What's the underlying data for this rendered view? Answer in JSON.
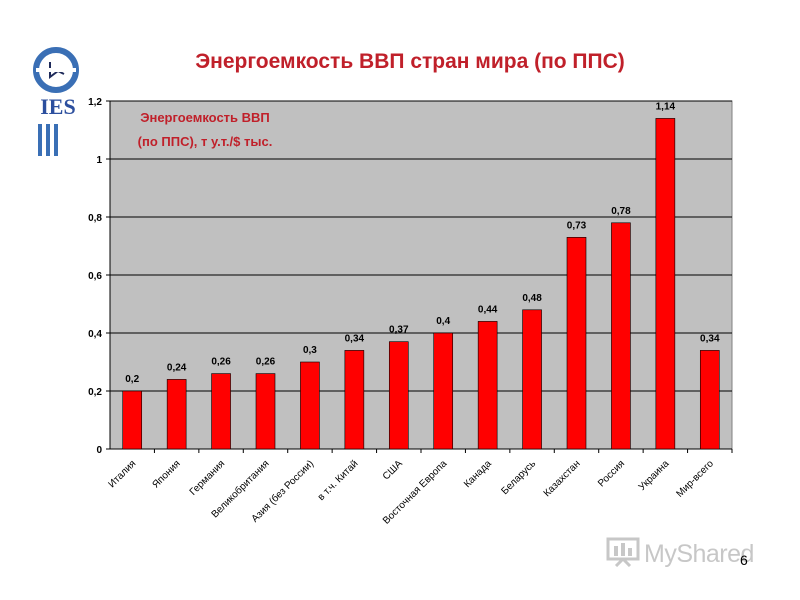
{
  "slide": {
    "title": "Энергоемкость ВВП стран мира (по ППС)",
    "logo_text": "IES",
    "page_number": "6",
    "watermark": "MyShared"
  },
  "colors": {
    "bar": "#ff0000",
    "plot_bg": "#c0c0c0",
    "title": "#c0202a",
    "inner_title": "#c0202a"
  },
  "chart_data": {
    "type": "bar",
    "inner_title_line1": "Энергоемкость ВВП",
    "inner_title_line2": "(по ППС), т у.т./$ тыс.",
    "categories": [
      "Италия",
      "Япония",
      "Германия",
      "Великобритания",
      "Азия (без России)",
      "в т.ч. Китай",
      "США",
      "Восточная Европа",
      "Канада",
      "Беларусь",
      "Казахстан",
      "Россия",
      "Украина",
      "Мир-всего"
    ],
    "values": [
      0.2,
      0.24,
      0.26,
      0.26,
      0.3,
      0.34,
      0.37,
      0.4,
      0.44,
      0.48,
      0.73,
      0.78,
      1.14,
      0.34
    ],
    "value_labels": [
      "0,2",
      "0,24",
      "0,26",
      "0,26",
      "0,3",
      "0,34",
      "0,37",
      "0,4",
      "0,44",
      "0,48",
      "0,73",
      "0,78",
      "1,14",
      "0,34"
    ],
    "y_ticks": [
      0,
      0.2,
      0.4,
      0.6,
      0.8,
      1,
      1.2
    ],
    "y_tick_labels": [
      "0",
      "0,2",
      "0,4",
      "0,6",
      "0,8",
      "1",
      "1,2"
    ],
    "ylim": [
      0,
      1.2
    ],
    "grid": true,
    "legend": "none"
  }
}
